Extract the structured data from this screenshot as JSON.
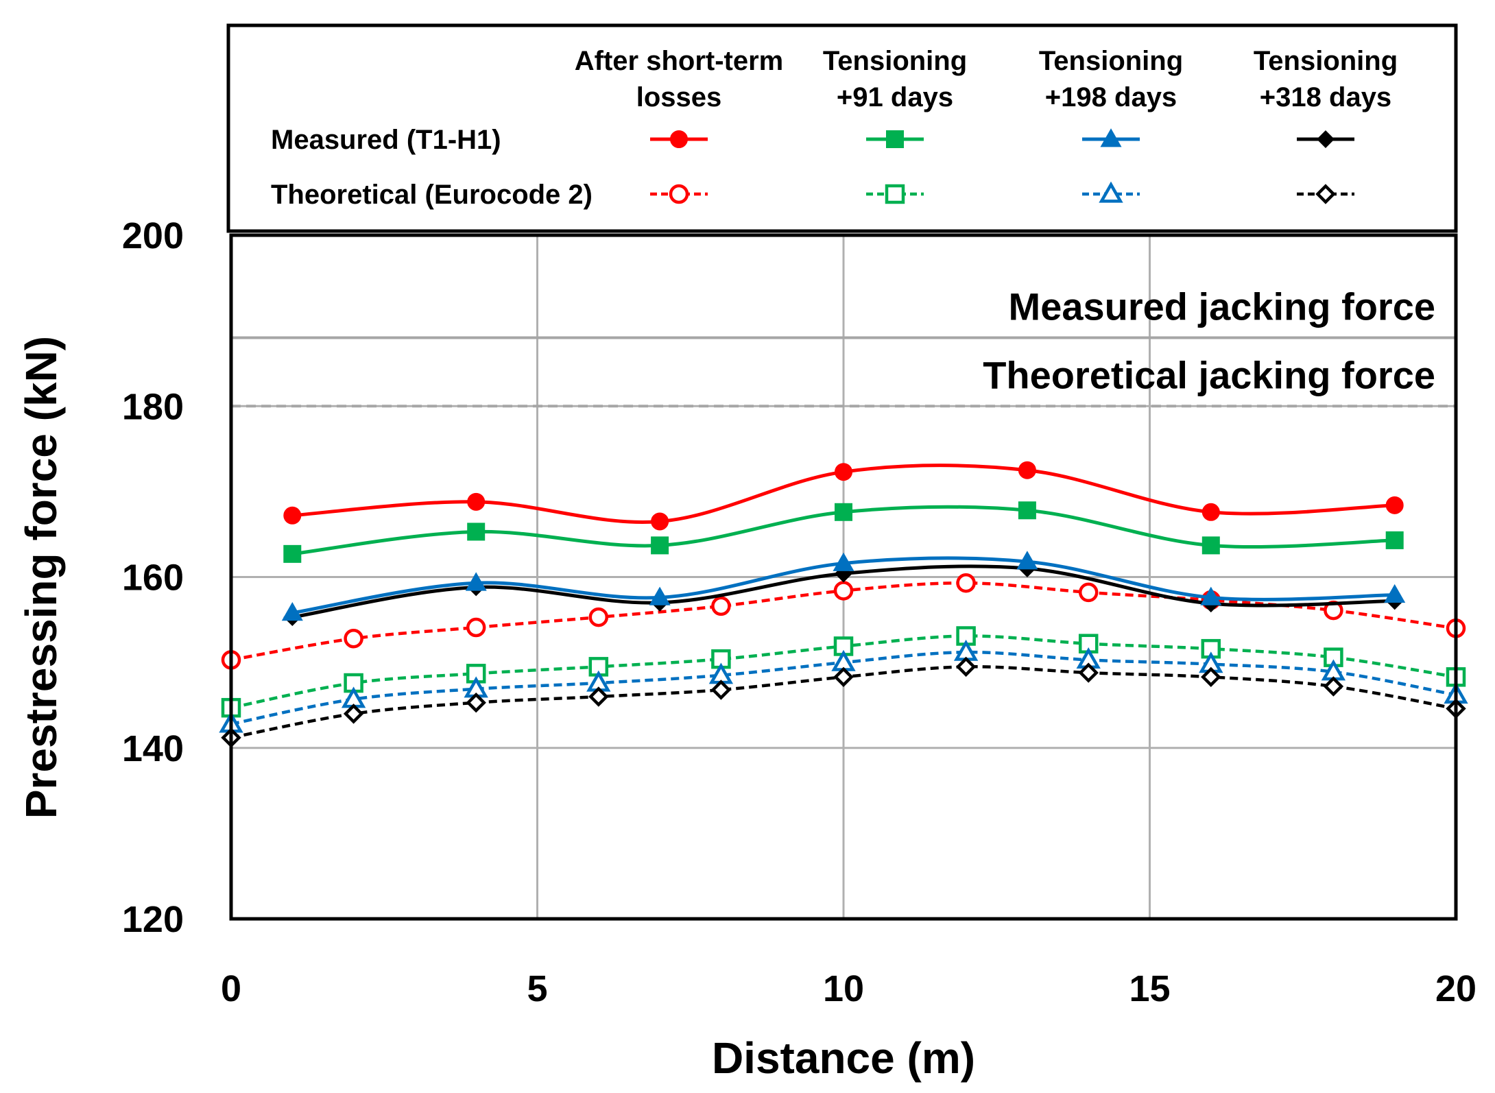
{
  "chart_data": {
    "type": "line",
    "xlabel": "Distance (m)",
    "ylabel": "Prestressing force (kN)",
    "xlim": [
      0,
      20
    ],
    "ylim": [
      120,
      200
    ],
    "xticks": [
      "0",
      "5",
      "10",
      "15",
      "20"
    ],
    "yticks": [
      "120",
      "140",
      "160",
      "180",
      "200"
    ],
    "grid": true,
    "legend": {
      "placement": "top",
      "column_headers": [
        [
          "After short-term",
          "losses"
        ],
        [
          "Tensioning",
          "+91 days"
        ],
        [
          "Tensioning",
          "+198 days"
        ],
        [
          "Tensioning",
          "+318 days"
        ]
      ],
      "row_labels": [
        "Measured (T1-H1)",
        "Theoretical (Eurocode 2)"
      ]
    },
    "reference_lines": [
      {
        "label": "Measured jacking force",
        "value": 188,
        "style": "solid",
        "color": "#a6a6a6"
      },
      {
        "label": "Theoretical jacking force",
        "value": 180,
        "style": "dashed",
        "color": "#a6a6a6"
      }
    ],
    "series": [
      {
        "name": "Measured - After short-term losses",
        "group": "measured",
        "color": "#ff0000",
        "marker": "circle",
        "filled": true,
        "dashed": false,
        "x": [
          1,
          4,
          7,
          10,
          13,
          16,
          19
        ],
        "values": [
          167.2,
          168.8,
          166.5,
          172.3,
          172.5,
          167.6,
          168.4
        ]
      },
      {
        "name": "Measured - Tensioning +91 days",
        "group": "measured",
        "color": "#00b050",
        "marker": "square",
        "filled": true,
        "dashed": false,
        "x": [
          1,
          4,
          7,
          10,
          13,
          16,
          19
        ],
        "values": [
          162.7,
          165.3,
          163.7,
          167.6,
          167.8,
          163.7,
          164.3
        ]
      },
      {
        "name": "Measured - Tensioning +198 days",
        "group": "measured",
        "color": "#0070c0",
        "marker": "triangle",
        "filled": true,
        "dashed": false,
        "x": [
          1,
          4,
          7,
          10,
          13,
          16,
          19
        ],
        "values": [
          155.8,
          159.3,
          157.6,
          161.6,
          161.8,
          157.6,
          157.9
        ]
      },
      {
        "name": "Measured - Tensioning +318 days",
        "group": "measured",
        "color": "#000000",
        "marker": "diamond",
        "filled": true,
        "dashed": false,
        "x": [
          1,
          4,
          7,
          10,
          13,
          16,
          19
        ],
        "values": [
          155.3,
          158.8,
          157.0,
          160.4,
          161.0,
          156.9,
          157.2
        ]
      },
      {
        "name": "Theoretical - After short-term losses",
        "group": "theoretical",
        "color": "#ff0000",
        "marker": "circle",
        "filled": false,
        "dashed": true,
        "x": [
          0,
          2,
          4,
          6,
          8,
          10,
          12,
          14,
          16,
          18,
          20
        ],
        "values": [
          150.3,
          152.8,
          154.1,
          155.3,
          156.6,
          158.4,
          159.3,
          158.2,
          157.3,
          156.1,
          154.0
        ]
      },
      {
        "name": "Theoretical - Tensioning +91 days",
        "group": "theoretical",
        "color": "#00b050",
        "marker": "square",
        "filled": false,
        "dashed": true,
        "x": [
          0,
          2,
          4,
          6,
          8,
          10,
          12,
          14,
          16,
          18,
          20
        ],
        "values": [
          144.7,
          147.6,
          148.7,
          149.5,
          150.4,
          151.9,
          153.1,
          152.2,
          151.6,
          150.6,
          148.3
        ]
      },
      {
        "name": "Theoretical - Tensioning +198 days",
        "group": "theoretical",
        "color": "#0070c0",
        "marker": "triangle",
        "filled": false,
        "dashed": true,
        "x": [
          0,
          2,
          4,
          6,
          8,
          10,
          12,
          14,
          16,
          18,
          20
        ],
        "values": [
          142.8,
          145.7,
          146.9,
          147.6,
          148.5,
          150.0,
          151.2,
          150.3,
          149.8,
          148.9,
          146.2
        ]
      },
      {
        "name": "Theoretical - Tensioning +318 days",
        "group": "theoretical",
        "color": "#000000",
        "marker": "diamond",
        "filled": false,
        "dashed": true,
        "x": [
          0,
          2,
          4,
          6,
          8,
          10,
          12,
          14,
          16,
          18,
          20
        ],
        "values": [
          141.2,
          144.0,
          145.3,
          146.0,
          146.8,
          148.3,
          149.5,
          148.8,
          148.3,
          147.2,
          144.6
        ]
      }
    ]
  }
}
